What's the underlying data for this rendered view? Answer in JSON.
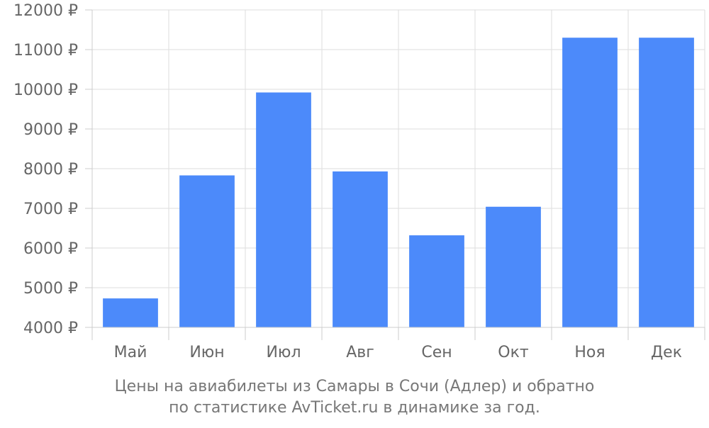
{
  "chart_data": {
    "type": "bar",
    "categories": [
      "Май",
      "Июн",
      "Июл",
      "Авг",
      "Сен",
      "Окт",
      "Ноя",
      "Дек"
    ],
    "values": [
      4730,
      7830,
      9920,
      7930,
      6320,
      7040,
      11300,
      11300
    ],
    "ylim": [
      4000,
      12000
    ],
    "y_ticks": [
      4000,
      5000,
      6000,
      7000,
      8000,
      9000,
      10000,
      11000,
      12000
    ],
    "y_tick_suffix": " ₽",
    "grid": true,
    "bar_color": "#4c8afa"
  },
  "caption": {
    "line1": "Цены на авиабилеты из Самары в Сочи (Адлер) и обратно",
    "line2": "по статистике AvTicket.ru в динамике за год."
  }
}
